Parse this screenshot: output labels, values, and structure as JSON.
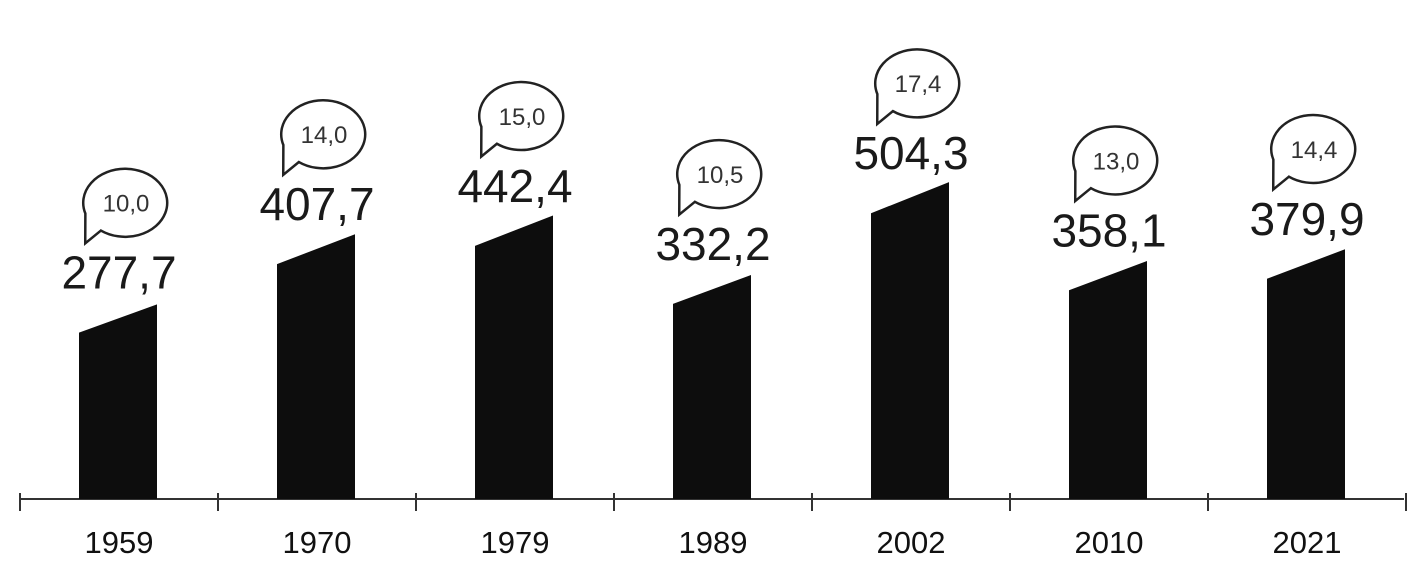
{
  "chart_data": {
    "type": "bar",
    "categories": [
      "1959",
      "1970",
      "1979",
      "1989",
      "2002",
      "2010",
      "2021"
    ],
    "series": [
      {
        "values": [
          277.7,
          407.7,
          442.4,
          332.2,
          504.3,
          358.1,
          379.9
        ]
      },
      {
        "values": [
          10.0,
          14.0,
          15.0,
          10.5,
          17.4,
          13.0,
          14.4
        ]
      }
    ],
    "data_labels": [
      "277,7",
      "407,7",
      "442,4",
      "332,2",
      "504,3",
      "358,1",
      "379,9"
    ],
    "bubble_labels": [
      "10,0",
      "14,0",
      "15,0",
      "10,5",
      "17,4",
      "13,0",
      "14,4"
    ],
    "title": "",
    "xlabel": "",
    "ylabel": "",
    "grid": false,
    "legend": "none",
    "colors": {
      "bar": "#0d0d0d",
      "text": "#1a1a1a",
      "bubble_stroke": "#222222"
    }
  }
}
